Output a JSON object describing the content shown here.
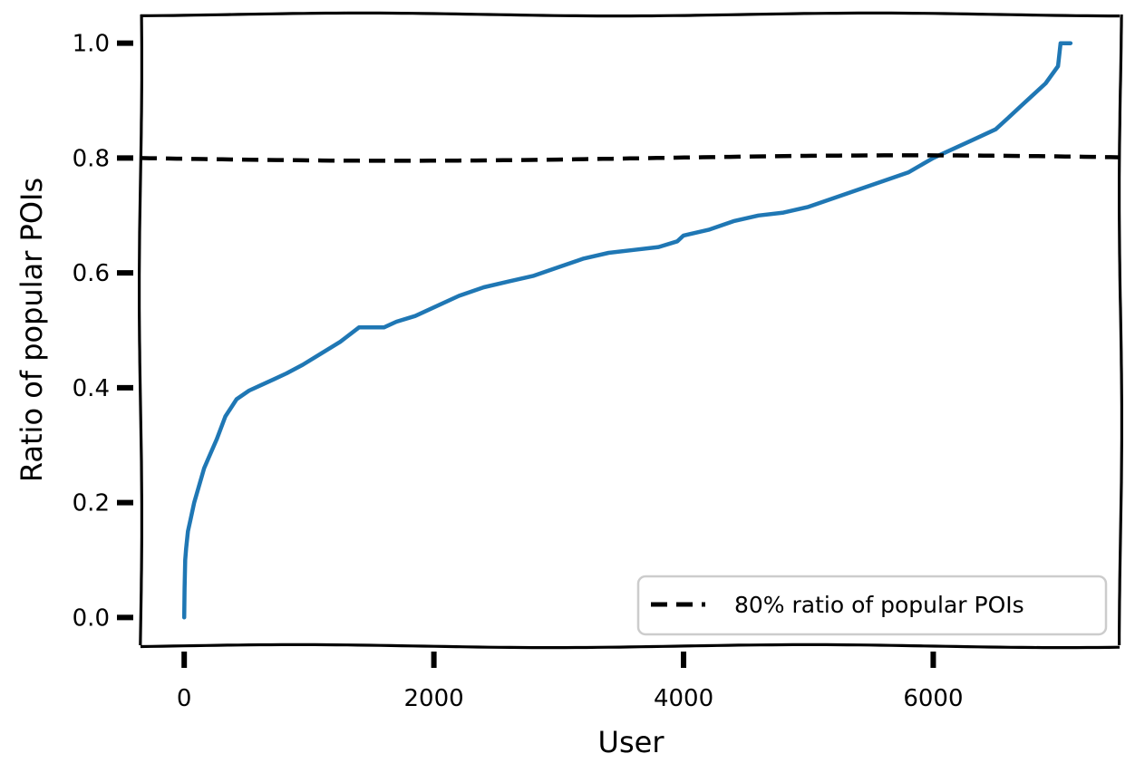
{
  "chart_data": {
    "type": "line",
    "xlabel": "User",
    "ylabel": "Ratio of popular POIs",
    "xlim": [
      -350,
      7500
    ],
    "ylim": [
      -0.05,
      1.05
    ],
    "xticks": [
      0,
      2000,
      4000,
      6000
    ],
    "xtick_labels": [
      "0",
      "2000",
      "4000",
      "6000"
    ],
    "yticks": [
      0.0,
      0.2,
      0.4,
      0.6,
      0.8,
      1.0
    ],
    "ytick_labels": [
      "0.0",
      "0.2",
      "0.4",
      "0.6",
      "0.8",
      "1.0"
    ],
    "grid": false,
    "legend_position": "bottom-right",
    "series": [
      {
        "color": "#1f77b4",
        "style": "solid",
        "x": [
          0,
          3,
          8,
          15,
          30,
          50,
          80,
          120,
          160,
          200,
          260,
          330,
          420,
          520,
          620,
          720,
          820,
          950,
          1100,
          1250,
          1400,
          1450,
          1600,
          1700,
          1850,
          2000,
          2200,
          2400,
          2600,
          2800,
          3000,
          3200,
          3400,
          3600,
          3800,
          3950,
          4000,
          4200,
          4400,
          4600,
          4800,
          5000,
          5200,
          5400,
          5600,
          5800,
          6000,
          6100,
          6300,
          6500,
          6600,
          6700,
          6800,
          6900,
          7000,
          7020,
          7050,
          7100
        ],
        "y": [
          0.0,
          0.05,
          0.1,
          0.12,
          0.15,
          0.17,
          0.2,
          0.23,
          0.26,
          0.28,
          0.31,
          0.35,
          0.38,
          0.395,
          0.405,
          0.415,
          0.425,
          0.44,
          0.46,
          0.48,
          0.505,
          0.505,
          0.505,
          0.515,
          0.525,
          0.54,
          0.56,
          0.575,
          0.585,
          0.595,
          0.61,
          0.625,
          0.635,
          0.64,
          0.645,
          0.655,
          0.665,
          0.675,
          0.69,
          0.7,
          0.705,
          0.715,
          0.73,
          0.745,
          0.76,
          0.775,
          0.8,
          0.81,
          0.83,
          0.85,
          0.87,
          0.89,
          0.91,
          0.93,
          0.96,
          1.0,
          1.0,
          1.0
        ]
      },
      {
        "name": "80% ratio of popular POIs",
        "color": "#000000",
        "style": "dashed",
        "x": [
          -350,
          7500
        ],
        "y": [
          0.8,
          0.8
        ]
      }
    ]
  }
}
